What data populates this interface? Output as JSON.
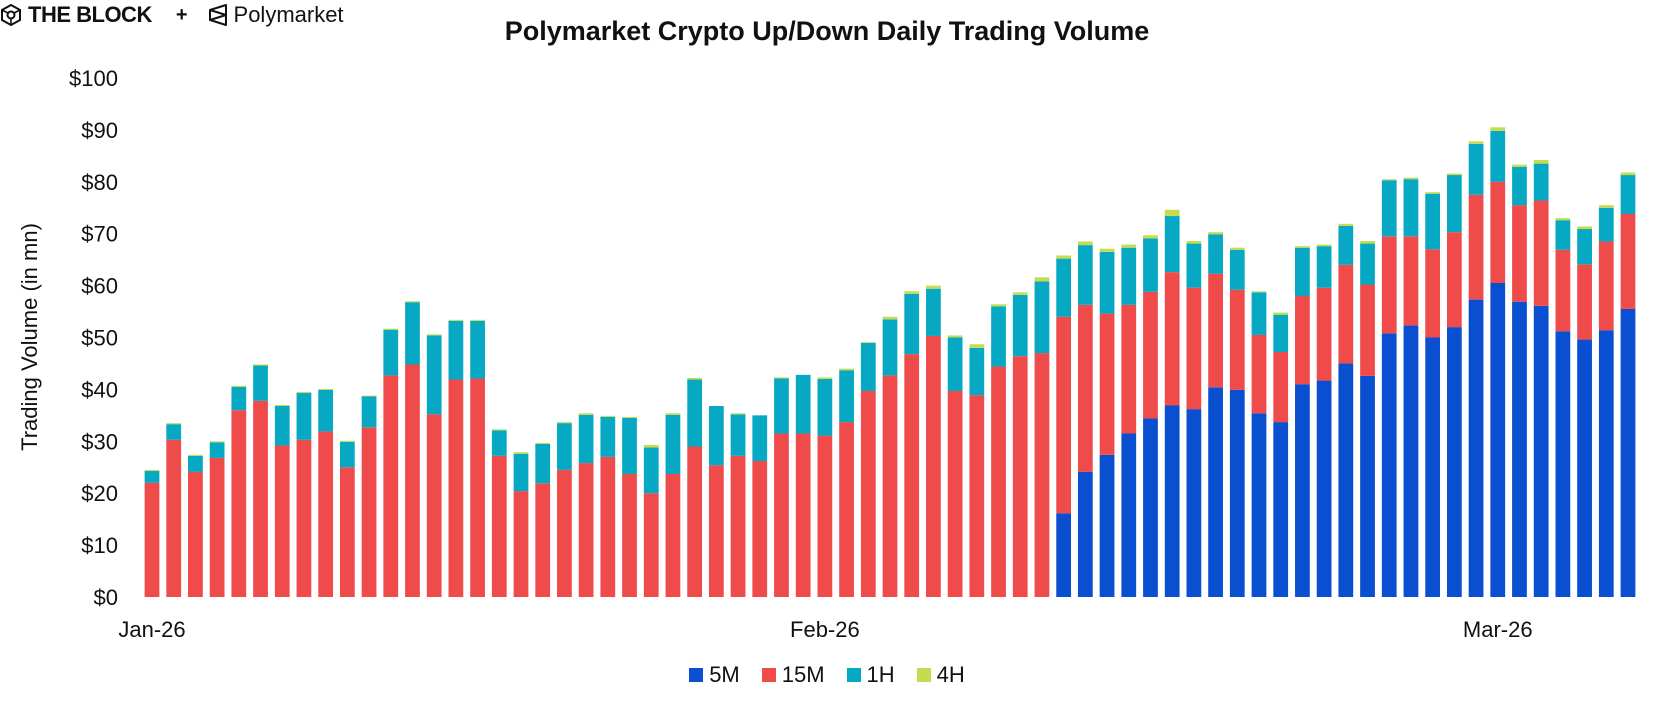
{
  "brand": {
    "left_name": "THE BLOCK",
    "separator": "+",
    "right_name": "Polymarket",
    "left_logo_icon": "the-block-cube-icon",
    "right_logo_icon": "polymarket-logo-icon"
  },
  "chart_data": {
    "type": "bar",
    "stacked": true,
    "title": "Polymarket Crypto Up/Down Daily Trading Volume",
    "xlabel": "",
    "ylabel": "Trading Volume (in mn)",
    "ylim": [
      0,
      100
    ],
    "yticks": [
      0,
      10,
      20,
      30,
      40,
      50,
      60,
      70,
      80,
      90,
      100
    ],
    "ytick_labels": [
      "$0",
      "$10",
      "$20",
      "$30",
      "$40",
      "$50",
      "$60",
      "$70",
      "$80",
      "$90",
      "$100"
    ],
    "xticks": [
      {
        "index": 0,
        "label": "Jan-26"
      },
      {
        "index": 31,
        "label": "Feb-26"
      },
      {
        "index": 62,
        "label": "Mar-26"
      }
    ],
    "grid": false,
    "legend_position": "bottom-center",
    "series": [
      {
        "name": "5M",
        "color": "#0b4fd1",
        "values": [
          0,
          0,
          0,
          0,
          0,
          0,
          0,
          0,
          0,
          0,
          0,
          0,
          0,
          0,
          0,
          0,
          0,
          0,
          0,
          0,
          0,
          0,
          0,
          0,
          0,
          0,
          0,
          0,
          0,
          0,
          0,
          0,
          0,
          0,
          0,
          0,
          0,
          0,
          0,
          0,
          0,
          0,
          16.1,
          24.1,
          27.4,
          31.5,
          34.4,
          36.9,
          36.2,
          40.4,
          39.9,
          35.4,
          33.7,
          41.0,
          41.7,
          45.0,
          42.6,
          50.8,
          52.3,
          50.0,
          52.0,
          57.3,
          60.5,
          56.9,
          56.1,
          51.2,
          49.6,
          51.4,
          55.5
        ]
      },
      {
        "name": "15M",
        "color": "#f04b4b",
        "values": [
          22.0,
          30.3,
          24.1,
          26.8,
          36.0,
          37.8,
          29.2,
          30.3,
          31.9,
          25.0,
          32.7,
          42.7,
          44.8,
          35.2,
          41.9,
          42.1,
          27.2,
          20.4,
          21.9,
          24.5,
          25.8,
          27.0,
          23.7,
          20.0,
          23.7,
          29.0,
          25.4,
          27.2,
          26.2,
          31.5,
          31.5,
          31.1,
          33.7,
          39.7,
          42.7,
          46.8,
          50.3,
          39.7,
          38.9,
          44.4,
          46.4,
          47.0,
          37.9,
          32.2,
          27.2,
          24.8,
          24.4,
          25.7,
          23.4,
          21.9,
          19.3,
          15.1,
          13.5,
          17.0,
          17.9,
          19.0,
          17.6,
          18.7,
          17.2,
          17.0,
          18.3,
          20.2,
          19.5,
          18.6,
          20.3,
          15.7,
          14.5,
          17.1,
          18.3
        ]
      },
      {
        "name": "1H",
        "color": "#06a8c4",
        "values": [
          2.3,
          3.0,
          3.1,
          3.0,
          4.5,
          6.8,
          7.6,
          9.0,
          8.0,
          4.9,
          6.0,
          8.8,
          12.0,
          15.2,
          11.3,
          11.1,
          4.9,
          7.2,
          7.6,
          9.0,
          9.3,
          7.7,
          10.8,
          8.8,
          11.4,
          12.9,
          11.4,
          8.0,
          8.8,
          10.6,
          11.3,
          10.9,
          10.0,
          9.3,
          10.8,
          11.6,
          9.1,
          10.3,
          9.1,
          11.6,
          11.8,
          13.8,
          11.2,
          11.5,
          11.9,
          11.0,
          10.3,
          10.8,
          8.5,
          7.6,
          7.7,
          8.2,
          7.2,
          9.3,
          8.0,
          7.5,
          7.9,
          10.8,
          11.0,
          10.7,
          11.0,
          9.8,
          9.8,
          7.4,
          7.1,
          5.7,
          6.8,
          6.5,
          7.5
        ]
      },
      {
        "name": "4H",
        "color": "#c6dc4f",
        "values": [
          0.2,
          0.2,
          0.2,
          0.2,
          0.2,
          0.2,
          0.2,
          0.2,
          0.2,
          0.2,
          0.1,
          0.2,
          0.2,
          0.2,
          0.2,
          0.2,
          0.2,
          0.3,
          0.2,
          0.2,
          0.3,
          0.2,
          0.2,
          0.5,
          0.3,
          0.3,
          0.0,
          0.2,
          0.0,
          0.2,
          0.0,
          0.3,
          0.3,
          0.1,
          0.5,
          0.5,
          0.6,
          0.4,
          0.7,
          0.4,
          0.5,
          0.8,
          0.6,
          0.7,
          0.6,
          0.6,
          0.6,
          1.2,
          0.5,
          0.4,
          0.4,
          0.2,
          0.4,
          0.3,
          0.3,
          0.4,
          0.5,
          0.2,
          0.3,
          0.3,
          0.3,
          0.5,
          0.7,
          0.4,
          0.7,
          0.4,
          0.5,
          0.5,
          0.5
        ]
      }
    ]
  }
}
